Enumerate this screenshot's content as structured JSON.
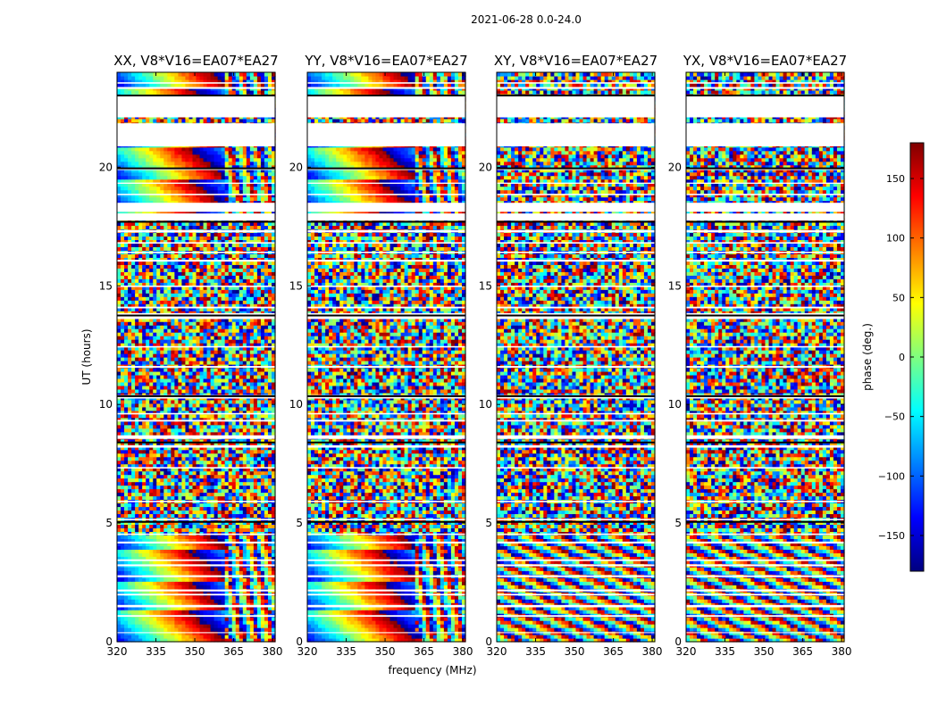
{
  "suptitle": "2021-06-28 0.0-24.0",
  "colormap": "jet",
  "chart_data": [
    {
      "type": "heatmap",
      "title": "XX, V8*V16=EA07*EA27",
      "xlabel": "",
      "ylabel": "UT (hours)",
      "xlim": [
        320,
        381
      ],
      "ylim": [
        0,
        24
      ],
      "xticks": [
        320,
        335,
        350,
        365,
        380
      ],
      "yticks": [
        0,
        5,
        10,
        15,
        20
      ],
      "x_tick_labels": [
        "320",
        "335",
        "350",
        "365",
        "380"
      ],
      "y_tick_labels": [
        "0",
        "5",
        "10",
        "15",
        "20"
      ]
    },
    {
      "type": "heatmap",
      "title": "YY, V8*V16=EA07*EA27",
      "xlabel": "frequency (MHz)",
      "ylabel": "",
      "xlim": [
        320,
        381
      ],
      "ylim": [
        0,
        24
      ],
      "xticks": [
        320,
        335,
        350,
        365,
        380
      ],
      "yticks": [
        0,
        5,
        10,
        15,
        20
      ],
      "x_tick_labels": [
        "320",
        "335",
        "350",
        "365",
        "380"
      ],
      "y_tick_labels": [
        "0",
        "5",
        "10",
        "15",
        "20"
      ]
    },
    {
      "type": "heatmap",
      "title": "XY, V8*V16=EA07*EA27",
      "xlabel": "",
      "ylabel": "",
      "xlim": [
        320,
        381
      ],
      "ylim": [
        0,
        24
      ],
      "xticks": [
        320,
        335,
        350,
        365,
        380
      ],
      "yticks": [
        0,
        5,
        10,
        15,
        20
      ],
      "x_tick_labels": [
        "320",
        "335",
        "350",
        "365",
        "380"
      ],
      "y_tick_labels": [
        "0",
        "5",
        "10",
        "15",
        "20"
      ]
    },
    {
      "type": "heatmap",
      "title": "YX, V8*V16=EA07*EA27",
      "xlabel": "",
      "ylabel": "",
      "xlim": [
        320,
        381
      ],
      "ylim": [
        0,
        24
      ],
      "xticks": [
        320,
        335,
        350,
        365,
        380
      ],
      "yticks": [
        0,
        5,
        10,
        15,
        20
      ],
      "x_tick_labels": [
        "320",
        "335",
        "350",
        "365",
        "380"
      ],
      "y_tick_labels": [
        "0",
        "5",
        "10",
        "15",
        "20"
      ]
    }
  ],
  "colorbar": {
    "label": "phase (deg.)",
    "range": [
      -180,
      180
    ],
    "ticks": [
      150,
      100,
      50,
      0,
      -50,
      -100,
      -150
    ],
    "tick_labels": [
      "150",
      "100",
      "50",
      "0",
      "−50",
      "−100",
      "−150"
    ]
  },
  "data_features": {
    "flagged_ut_bands": [
      [
        0.36,
        0.4
      ],
      [
        1.05,
        1.12
      ],
      [
        1.45,
        1.55
      ],
      [
        1.95,
        2.02
      ],
      [
        2.12,
        2.2
      ],
      [
        2.72,
        2.8
      ],
      [
        3.18,
        3.26
      ],
      [
        3.4,
        3.47
      ],
      [
        4.14,
        4.22
      ],
      [
        4.5,
        4.56
      ],
      [
        5.12,
        5.18
      ],
      [
        5.88,
        5.94
      ],
      [
        7.3,
        7.36
      ],
      [
        8.18,
        8.28
      ],
      [
        8.55,
        8.7
      ],
      [
        9.28,
        9.35
      ],
      [
        9.58,
        9.64
      ],
      [
        10.25,
        10.4
      ],
      [
        11.55,
        11.62
      ],
      [
        12.4,
        12.46
      ],
      [
        13.6,
        13.85
      ],
      [
        14.05,
        14.12
      ],
      [
        14.95,
        15.01
      ],
      [
        16.02,
        16.1
      ],
      [
        16.38,
        16.44
      ],
      [
        16.78,
        16.84
      ],
      [
        17.25,
        17.35
      ],
      [
        17.75,
        18.05
      ],
      [
        18.12,
        18.5
      ],
      [
        18.82,
        18.88
      ],
      [
        19.3,
        19.35
      ],
      [
        19.88,
        19.96
      ],
      [
        20.88,
        21.85
      ],
      [
        22.1,
        23.0
      ],
      [
        23.3,
        23.38
      ],
      [
        23.52,
        23.58
      ]
    ],
    "black_ut_lines": [
      5.05,
      8.4,
      10.35,
      13.75,
      17.7,
      19.95,
      23.02
    ],
    "coherent_ut_ranges_parallel": [
      [
        0,
        4.5
      ],
      [
        18.0,
        21.0
      ],
      [
        23.0,
        24.0
      ]
    ]
  }
}
